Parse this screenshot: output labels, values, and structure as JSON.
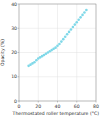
{
  "chart_data": {
    "type": "scatter",
    "xlabel": "Thermostated roller temperature (°C)",
    "ylabel": "Opacity (%)",
    "x": [
      10,
      12,
      14,
      16,
      18,
      20,
      22,
      24,
      26,
      28,
      30,
      32,
      34,
      36,
      38,
      40,
      42,
      44,
      46,
      48,
      50,
      52,
      54,
      56,
      58,
      60,
      62,
      64,
      66,
      68,
      70
    ],
    "values": [
      14.5,
      15.0,
      15.5,
      16.0,
      16.8,
      17.5,
      18.0,
      18.5,
      19.0,
      19.5,
      20.0,
      20.5,
      21.0,
      21.5,
      22.0,
      22.8,
      23.5,
      24.5,
      25.5,
      26.5,
      27.5,
      28.5,
      29.5,
      30.5,
      31.5,
      32.5,
      33.5,
      34.5,
      35.5,
      36.5,
      37.5
    ],
    "color": "#7fd8e8",
    "marker": "circle",
    "xlim": [
      0,
      80
    ],
    "ylim": [
      0,
      40
    ],
    "xticks": [
      0,
      20,
      40,
      60,
      80
    ],
    "yticks": [
      0,
      10,
      20,
      30,
      40
    ],
    "grid": true
  }
}
